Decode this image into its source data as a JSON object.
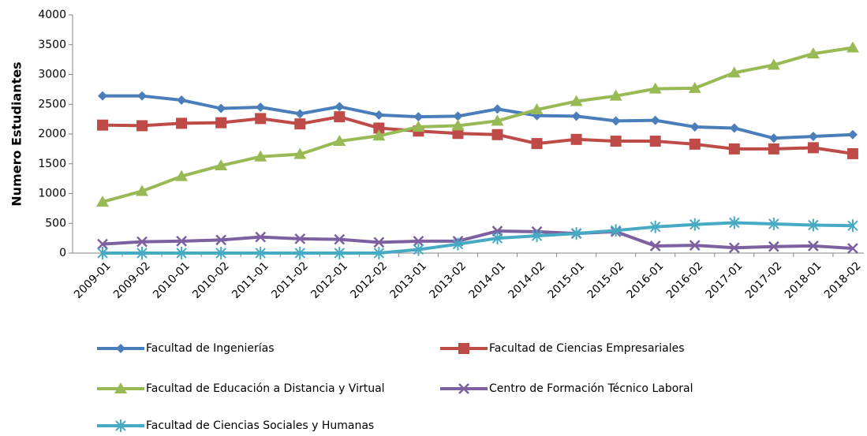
{
  "chart_data": {
    "type": "line",
    "y_label": "Numero Estudiantes",
    "categories": [
      "2009-01",
      "2009-02",
      "2010-01",
      "2010-02",
      "2011-01",
      "2011-02",
      "2012-01",
      "2012-02",
      "2013-01",
      "2013-02",
      "2014-01",
      "2014-02",
      "2015-01",
      "2015-02",
      "2016-01",
      "2016-02",
      "2017-01",
      "2017-02",
      "2018-01",
      "2018-02"
    ],
    "series": [
      {
        "name": "Facultad de Ingenierías",
        "color": "#4a7ebb",
        "marker": "diamond",
        "values": [
          2640,
          2640,
          2570,
          2430,
          2450,
          2340,
          2460,
          2320,
          2290,
          2300,
          2420,
          2310,
          2300,
          2220,
          2230,
          2120,
          2100,
          1930,
          1960,
          1990
        ]
      },
      {
        "name": "Facultad de Ciencias Empresariales",
        "color": "#be4b48",
        "marker": "square",
        "values": [
          2150,
          2140,
          2180,
          2190,
          2260,
          2170,
          2290,
          2100,
          2050,
          2010,
          1990,
          1840,
          1910,
          1880,
          1880,
          1830,
          1750,
          1750,
          1770,
          1670
        ]
      },
      {
        "name": "Facultad de Educación a Distancia y Virtual",
        "color": "#98b954",
        "marker": "triangle",
        "values": [
          860,
          1040,
          1290,
          1470,
          1620,
          1660,
          1880,
          1970,
          2120,
          2140,
          2220,
          2410,
          2550,
          2640,
          2760,
          2770,
          3030,
          3160,
          3350,
          3450
        ]
      },
      {
        "name": "Centro de Formación Técnico Laboral",
        "color": "#7d60a0",
        "marker": "x",
        "values": [
          150,
          190,
          200,
          220,
          270,
          240,
          230,
          180,
          200,
          200,
          370,
          360,
          330,
          360,
          120,
          130,
          90,
          110,
          120,
          80
        ]
      },
      {
        "name": "Facultad de Ciencias Sociales y Humanas",
        "color": "#46aac5",
        "marker": "asterisk",
        "values": [
          0,
          0,
          0,
          0,
          0,
          0,
          0,
          0,
          60,
          150,
          250,
          290,
          330,
          380,
          440,
          480,
          510,
          490,
          470,
          460
        ]
      }
    ],
    "ylim": [
      0,
      4000
    ],
    "yticks": [
      0,
      500,
      1000,
      1500,
      2000,
      2500,
      3000,
      3500,
      4000
    ],
    "grid": false,
    "legend": "bottom"
  }
}
